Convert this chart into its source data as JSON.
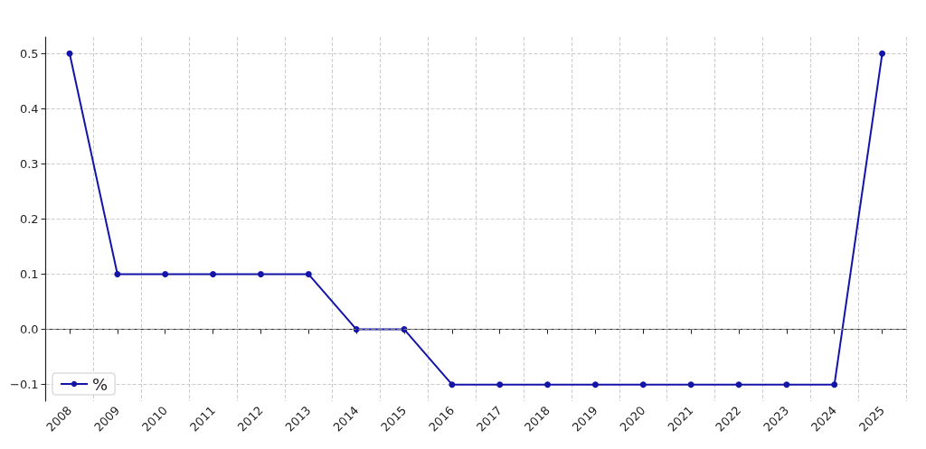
{
  "chart_data": {
    "type": "line",
    "categories": [
      "2008",
      "2009",
      "2010",
      "2011",
      "2012",
      "2013",
      "2014",
      "2015",
      "2016",
      "2017",
      "2018",
      "2019",
      "2020",
      "2021",
      "2022",
      "2023",
      "2024",
      "2025"
    ],
    "series": [
      {
        "name": "%",
        "color": "#1414a8",
        "values": [
          0.5,
          0.1,
          0.1,
          0.1,
          0.1,
          0.1,
          0,
          0,
          -0.1,
          -0.1,
          -0.1,
          -0.1,
          -0.1,
          -0.1,
          -0.1,
          -0.1,
          -0.1,
          0.5
        ]
      }
    ],
    "ylim": [
      -0.13,
      0.53
    ],
    "yticks": [
      {
        "value": -0.1,
        "label": "−0.1"
      },
      {
        "value": 0,
        "label": "0.0"
      },
      {
        "value": 0.1,
        "label": "0.1"
      },
      {
        "value": 0.2,
        "label": "0.2"
      },
      {
        "value": 0.3,
        "label": "0.3"
      },
      {
        "value": 0.4,
        "label": "0.4"
      },
      {
        "value": 0.5,
        "label": "0.5"
      }
    ],
    "ref_lines": [
      {
        "axis": "y",
        "value": 0,
        "color": "#808080",
        "line_style": "dashed"
      }
    ],
    "grid": true,
    "legend": "bottom left",
    "marker": "circle",
    "line_style": "solid"
  }
}
